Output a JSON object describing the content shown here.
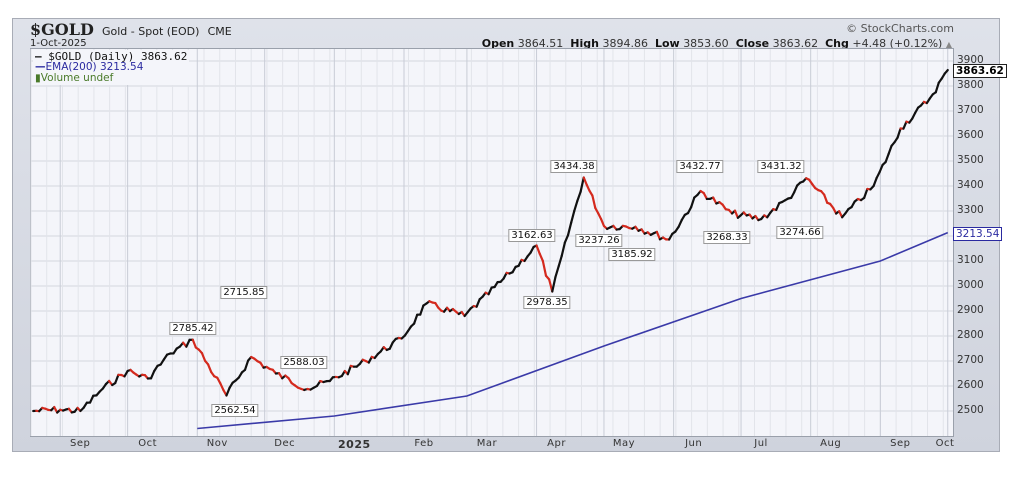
{
  "header": {
    "ticker": "$GOLD",
    "name": "Gold - Spot (EOD)",
    "exchange": "CME",
    "date": "1-Oct-2025",
    "copyright": "© StockCharts.com",
    "open_label": "Open",
    "open": "3864.51",
    "high_label": "High",
    "high": "3894.86",
    "low_label": "Low",
    "low": "3853.60",
    "close_label": "Close",
    "close": "3863.62",
    "chg_label": "Chg",
    "chg": "+4.48 (+0.12%)",
    "chg_arrow": "▲"
  },
  "legend": {
    "price": "$GOLD (Daily) 3863.62",
    "ema": "EMA(200) 3213.54",
    "volume": "Volume undef"
  },
  "last_value_tags": {
    "price": "3863.62",
    "ema": "3213.54"
  },
  "colors": {
    "up": "#111111",
    "down": "#d42a1e",
    "ema": "#3a3aa8",
    "plot_bg": "#f4f5fa",
    "frame": "#d5d8e0"
  },
  "chart_data": {
    "type": "line",
    "title": "$GOLD Gold - Spot (EOD) CME",
    "subtitle": "1-Oct-2025",
    "xlabel": "",
    "ylabel": "",
    "ylim": [
      2430,
      3920
    ],
    "grid": true,
    "legend_position": "top-left",
    "x_ticks": [
      "Sep",
      "Oct",
      "Nov",
      "Dec",
      "2025",
      "Feb",
      "Mar",
      "Apr",
      "May",
      "Jun",
      "Jul",
      "Aug",
      "Sep",
      "Oct"
    ],
    "y_ticks": [
      2500,
      2600,
      2700,
      2800,
      2900,
      3000,
      3100,
      3200,
      3300,
      3400,
      3500,
      3600,
      3700,
      3800,
      3900
    ],
    "series": [
      {
        "name": "$GOLD (Daily)",
        "last": 3863.62,
        "x": [
          "2024-08-20",
          "2024-09-01",
          "2024-09-10",
          "2024-09-20",
          "2024-10-01",
          "2024-10-10",
          "2024-10-20",
          "2024-10-30",
          "2024-11-14",
          "2024-11-25",
          "2024-12-06",
          "2024-12-20",
          "2024-12-30",
          "2025-01-15",
          "2025-01-31",
          "2025-02-11",
          "2025-02-28",
          "2025-03-20",
          "2025-04-01",
          "2025-04-08",
          "2025-04-22",
          "2025-05-01",
          "2025-05-15",
          "2025-05-30",
          "2025-06-13",
          "2025-06-27",
          "2025-07-10",
          "2025-07-22",
          "2025-07-30",
          "2025-08-15",
          "2025-08-29",
          "2025-09-10",
          "2025-09-23",
          "2025-10-01"
        ],
        "values": [
          2500,
          2505,
          2500,
          2590,
          2660,
          2630,
          2730,
          2785,
          2562,
          2716,
          2650,
          2588,
          2620,
          2700,
          2790,
          2930,
          2880,
          3050,
          3162,
          2978,
          3434,
          3240,
          3237,
          3186,
          3380,
          3290,
          3268,
          3350,
          3431,
          3275,
          3400,
          3630,
          3750,
          3863.62
        ]
      },
      {
        "name": "EMA(200)",
        "last": 3213.54,
        "x": [
          "2024-11-01",
          "2025-01-01",
          "2025-03-01",
          "2025-05-01",
          "2025-07-01",
          "2025-09-01",
          "2025-10-01"
        ],
        "values": [
          2430,
          2480,
          2560,
          2760,
          2950,
          3100,
          3213.54
        ]
      }
    ],
    "annotations": [
      {
        "label": "2785.42",
        "type": "high"
      },
      {
        "label": "2562.54",
        "type": "low"
      },
      {
        "label": "2715.85",
        "type": "high"
      },
      {
        "label": "2588.03",
        "type": "low"
      },
      {
        "label": "3162.63",
        "type": "high"
      },
      {
        "label": "2978.35",
        "type": "low"
      },
      {
        "label": "3434.38",
        "type": "high"
      },
      {
        "label": "3237.26",
        "type": "low"
      },
      {
        "label": "3185.92",
        "type": "low"
      },
      {
        "label": "3432.77",
        "type": "high"
      },
      {
        "label": "3268.33",
        "type": "low"
      },
      {
        "label": "3431.32",
        "type": "high"
      },
      {
        "label": "3274.66",
        "type": "low"
      }
    ]
  }
}
